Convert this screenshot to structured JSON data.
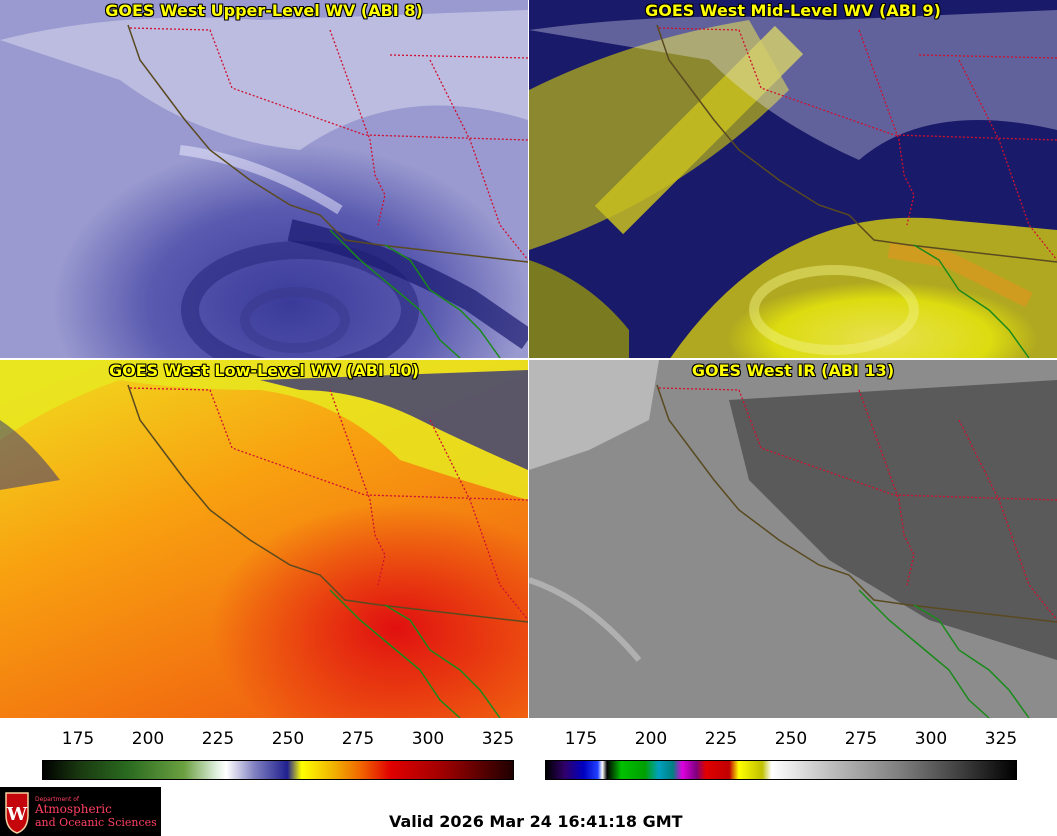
{
  "panels": [
    {
      "title": "GOES West Upper-Level WV (ABI 8)"
    },
    {
      "title": "GOES West Mid-Level WV (ABI 9)"
    },
    {
      "title": "GOES West Low-Level WV (ABI 10)"
    },
    {
      "title": "GOES West IR (ABI 13)"
    }
  ],
  "wv_scale": {
    "ticks": [
      "175",
      "200",
      "225",
      "250",
      "275",
      "300",
      "325"
    ]
  },
  "ir_scale": {
    "ticks": [
      "175",
      "200",
      "225",
      "250",
      "275",
      "300",
      "325"
    ]
  },
  "logo": {
    "line1": "Department of",
    "line2": "Atmospheric",
    "line3": "and Oceanic Sciences"
  },
  "valid_time": "Valid 2026 Mar 24 16:41:18 GMT",
  "colors": {
    "border": "#b0002a",
    "coast": "#5a4a20",
    "land_outline": "#1a8a1a",
    "title": "#ffff00"
  }
}
